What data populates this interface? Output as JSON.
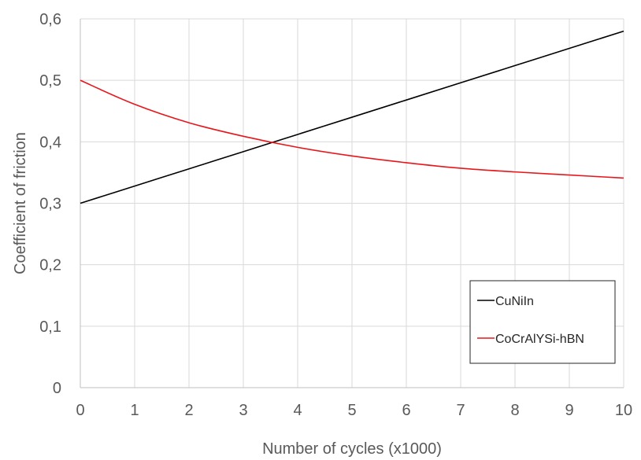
{
  "chart_data": {
    "type": "line",
    "title": "",
    "xlabel": "Number of cycles (x1000)",
    "ylabel": "Coefficient of friction",
    "xlim": [
      0,
      10
    ],
    "ylim": [
      0,
      0.6
    ],
    "x_ticks": [
      "0",
      "1",
      "2",
      "3",
      "4",
      "5",
      "6",
      "7",
      "8",
      "9",
      "10"
    ],
    "y_ticks": [
      "0",
      "0,1",
      "0,2",
      "0,3",
      "0,4",
      "0,5",
      "0,6"
    ],
    "grid": true,
    "legend_placement": "bottom-right",
    "series": [
      {
        "name": "CuNiIn",
        "color": "#000000",
        "x": [
          0,
          1,
          2,
          3,
          4,
          5,
          6,
          7,
          8,
          9,
          10
        ],
        "values": [
          0.3,
          0.328,
          0.356,
          0.384,
          0.412,
          0.44,
          0.468,
          0.496,
          0.524,
          0.552,
          0.58
        ]
      },
      {
        "name": "CoCrAlYSi-hBN",
        "color": "#e8161b",
        "x": [
          0,
          1,
          2,
          3,
          4,
          5,
          6,
          7,
          8,
          9,
          10
        ],
        "values": [
          0.5,
          0.461,
          0.431,
          0.409,
          0.391,
          0.377,
          0.366,
          0.357,
          0.351,
          0.346,
          0.341
        ]
      }
    ]
  }
}
